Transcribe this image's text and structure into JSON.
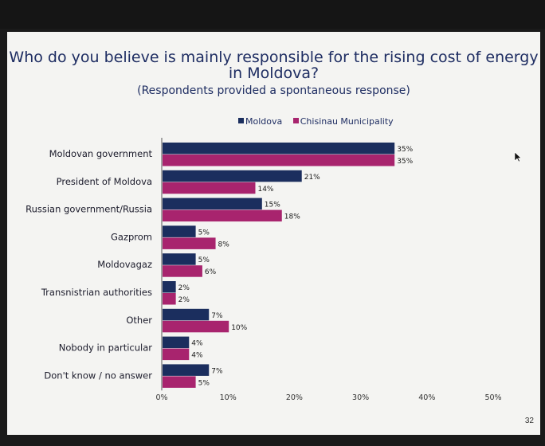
{
  "slide": {
    "title": "Who do you believe is mainly responsible for the rising cost of energy in Moldova?",
    "subtitle": "(Respondents provided a spontaneous response)",
    "page_number": "32"
  },
  "colors": {
    "moldova": "#1b2e5e",
    "chisinau": "#a8246e",
    "axis": "#555555",
    "text": "#1e2d62"
  },
  "chart_data": {
    "type": "bar",
    "orientation": "horizontal",
    "title": "Who do you believe is mainly responsible for the rising cost of energy in Moldova?",
    "categories": [
      "Moldovan government",
      "President of Moldova",
      "Russian government/Russia",
      "Gazprom",
      "Moldovagaz",
      "Transnistrian authorities",
      "Other",
      "Nobody in particular",
      "Don't know / no answer"
    ],
    "series": [
      {
        "name": "Moldova",
        "values": [
          35,
          21,
          15,
          5,
          5,
          2,
          7,
          4,
          7
        ],
        "labels": [
          "35%",
          "21%",
          "15%",
          "5%",
          "5%",
          "2%",
          "7%",
          "4%",
          "7%"
        ]
      },
      {
        "name": "Chisinau Municipality",
        "values": [
          35,
          14,
          18,
          8,
          6,
          2,
          10,
          4,
          5
        ],
        "labels": [
          "35%",
          "14%",
          "18%",
          "8%",
          "6%",
          "2%",
          "10%",
          "4%",
          "5%"
        ]
      }
    ],
    "xlim": [
      0,
      50
    ],
    "xticks": [
      0,
      10,
      20,
      30,
      40,
      50
    ],
    "xtick_labels": [
      "0%",
      "10%",
      "20%",
      "30%",
      "40%",
      "50%"
    ],
    "legend_position": "top-center",
    "grid": false
  }
}
